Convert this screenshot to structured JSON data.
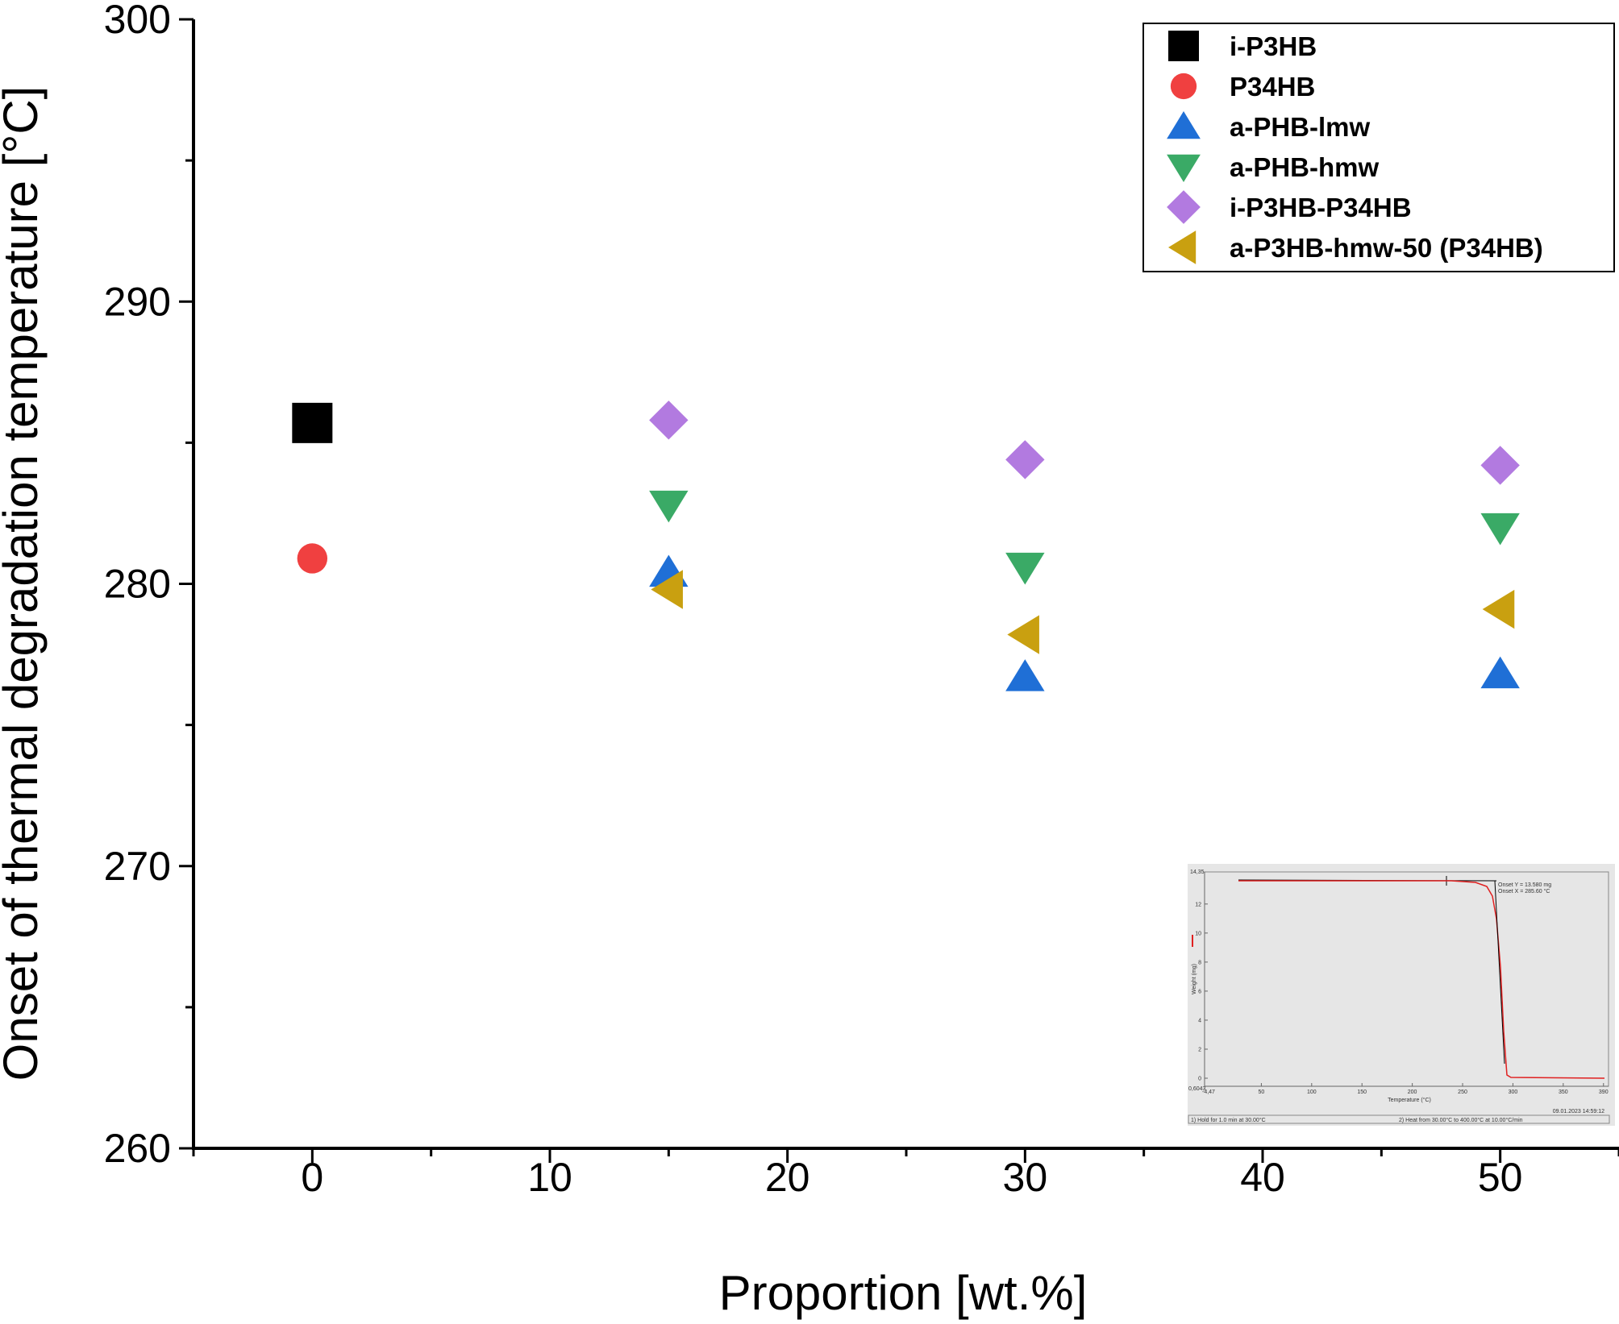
{
  "chart_data": {
    "type": "scatter",
    "xlabel": "Proportion [wt.%]",
    "ylabel": "Onset of thermal degradation temperature [°C]",
    "xlim": [
      -5,
      55
    ],
    "ylim": [
      260,
      300
    ],
    "x_ticks": [
      0,
      10,
      20,
      30,
      40,
      50
    ],
    "y_ticks": [
      260,
      270,
      280,
      290,
      300
    ],
    "legend_position": "top-right",
    "series": [
      {
        "name": "i-P3HB",
        "marker": "square",
        "color": "#000000",
        "points": [
          [
            0,
            285.7
          ]
        ]
      },
      {
        "name": "P34HB",
        "marker": "circle",
        "color": "#f04040",
        "points": [
          [
            0,
            280.9
          ]
        ]
      },
      {
        "name": "a-PHB-lmw",
        "marker": "triangle-up",
        "color": "#1f6fd6",
        "points": [
          [
            15,
            280.4
          ],
          [
            30,
            276.7
          ],
          [
            50,
            276.8
          ]
        ]
      },
      {
        "name": "a-PHB-hmw",
        "marker": "triangle-down",
        "color": "#3aaa66",
        "points": [
          [
            15,
            282.8
          ],
          [
            30,
            280.6
          ],
          [
            50,
            282.0
          ]
        ]
      },
      {
        "name": "i-P3HB-P34HB",
        "marker": "diamond",
        "color": "#b27ae0",
        "points": [
          [
            15,
            285.8
          ],
          [
            30,
            284.4
          ],
          [
            50,
            284.2
          ]
        ]
      },
      {
        "name": "a-P3HB-hmw-50 (P34HB)",
        "marker": "triangle-left",
        "color": "#c9a010",
        "points": [
          [
            15,
            279.8
          ],
          [
            30,
            278.2
          ],
          [
            50,
            279.1
          ]
        ]
      }
    ]
  },
  "inset": {
    "onset_y": "Onset Y = 13.580 mg",
    "onset_x": "Onset X = 285.60 °C",
    "y_top": "14,35",
    "y_bottom": "0,6043",
    "x_left": "-4,47",
    "y_ticks": [
      "12",
      "10",
      "8",
      "6",
      "4",
      "2",
      "0"
    ],
    "x_ticks": [
      "50",
      "100",
      "150",
      "200",
      "250",
      "300",
      "350",
      "390"
    ],
    "xlabel": "Temperature (°C)",
    "ylabel": "Weight (mg)",
    "timestamp": "09.01.2023 14:59:12",
    "step1": "1) Hold for 1.0 min at 30.00°C",
    "step2": "2) Heat from 30.00°C to 400.00°C at 10.00°C/min"
  }
}
